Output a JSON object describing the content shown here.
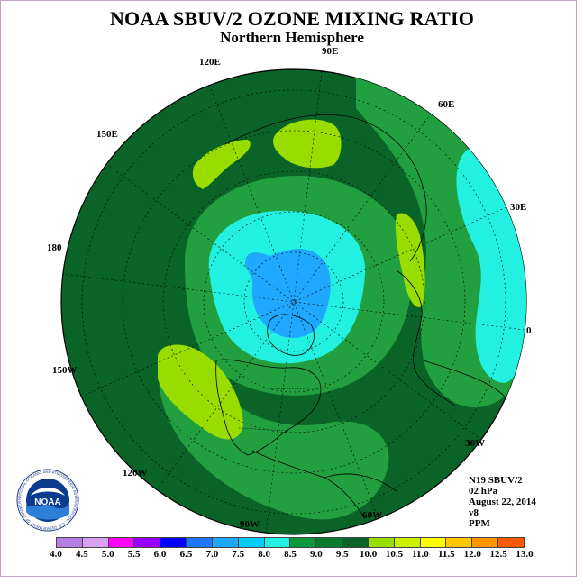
{
  "header": {
    "title": "NOAA SBUV/2 OZONE MIXING RATIO",
    "subtitle": "Northern Hemisphere"
  },
  "longitude_labels": [
    "90E",
    "60E",
    "30E",
    "0",
    "30W",
    "60W",
    "90W",
    "120W",
    "150W",
    "180",
    "150E",
    "120E"
  ],
  "info": {
    "instrument": "N19 SBUV/2",
    "pressure": "02 hPa",
    "date": "August 22, 2014",
    "version": "v8",
    "units": "PPM"
  },
  "logo": {
    "text": "NOAA",
    "ring_text": "NATIONAL OCEANIC AND ATMOSPHERIC ADMINISTRATION · U.S. DEPARTMENT OF COMMERCE"
  },
  "legend": {
    "ticks": [
      "4.0",
      "4.5",
      "5.0",
      "5.5",
      "6.0",
      "6.5",
      "7.0",
      "7.5",
      "8.0",
      "8.5",
      "9.0",
      "9.5",
      "10.0",
      "10.5",
      "11.0",
      "11.5",
      "12.0",
      "12.5",
      "13.0"
    ],
    "colors": [
      "#b57fe6",
      "#dca0f0",
      "#ff00ff",
      "#9900ff",
      "#0000ff",
      "#1e78ff",
      "#1ea8ff",
      "#00ccff",
      "#22f0e0",
      "#0a9a3c",
      "#0a7a2e",
      "#086428",
      "#99dd00",
      "#ccf000",
      "#ffff00",
      "#ffc800",
      "#ff9600",
      "#ff5a00",
      "#ee0000",
      "#a0522d"
    ]
  },
  "colors": {
    "ozone_8_0_8_5": "#22a040",
    "ozone_8_5_9_0": "#0a7a2e",
    "ozone_9_0_9_5": "#0a6428",
    "ozone_9_5_10_0": "#99dd00",
    "ozone_7_5_8_0": "#22f0e0",
    "ozone_7_0_7_5": "#1ea8ff"
  }
}
